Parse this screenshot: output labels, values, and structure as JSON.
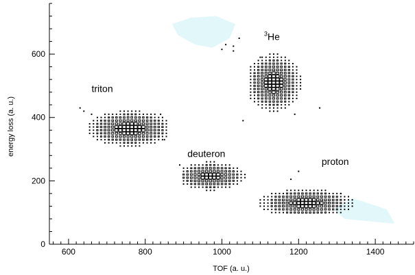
{
  "chart_data": {
    "type": "heatmap",
    "xlabel": "TOF (a. u.)",
    "ylabel": "energy loss (a. u.)",
    "xlim": [
      550,
      1500
    ],
    "ylim": [
      0,
      760
    ],
    "x_ticks": [
      600,
      800,
      1000,
      1200,
      1400
    ],
    "y_ticks": [
      0,
      200,
      400,
      600
    ],
    "annotations": [
      {
        "text": "triton",
        "x": 660,
        "y": 480
      },
      {
        "text": "deuteron",
        "x": 910,
        "y": 275
      },
      {
        "text": "proton",
        "x": 1260,
        "y": 250
      },
      {
        "text": "He",
        "superscript": "3",
        "x": 1110,
        "y": 645
      }
    ],
    "highlight_regions": [
      {
        "name": "upper-blob",
        "points": [
          [
            1020,
            650
          ],
          [
            1035,
            695
          ],
          [
            985,
            720
          ],
          [
            920,
            715
          ],
          [
            870,
            695
          ],
          [
            885,
            660
          ],
          [
            930,
            630
          ],
          [
            975,
            620
          ]
        ]
      },
      {
        "name": "lower-blob",
        "points": [
          [
            1450,
            65
          ],
          [
            1430,
            110
          ],
          [
            1380,
            130
          ],
          [
            1340,
            145
          ],
          [
            1290,
            110
          ],
          [
            1320,
            80
          ],
          [
            1390,
            72
          ]
        ]
      }
    ],
    "clusters": [
      {
        "name": "triton",
        "x_center": 760,
        "y_center": 365,
        "x_sigma": 55,
        "y_sigma": 28,
        "x_range": [
          625,
          855
        ],
        "y_range": [
          300,
          440
        ],
        "peak": 4
      },
      {
        "name": "deuteron",
        "x_center": 970,
        "y_center": 215,
        "x_sigma": 45,
        "y_sigma": 22,
        "x_range": [
          900,
          1060
        ],
        "y_range": [
          150,
          260
        ],
        "peak": 5
      },
      {
        "name": "proton",
        "x_center": 1220,
        "y_center": 130,
        "x_sigma": 60,
        "y_sigma": 22,
        "x_range": [
          1080,
          1340
        ],
        "y_range": [
          100,
          210
        ],
        "peak": 9
      },
      {
        "name": "helium-3",
        "x_center": 1135,
        "y_center": 510,
        "x_sigma": 35,
        "y_sigma": 45,
        "x_range": [
          1075,
          1205
        ],
        "y_range": [
          420,
          600
        ],
        "peak": 4
      }
    ],
    "scatter_cells": [
      [
        1000,
        615
      ],
      [
        1010,
        630
      ],
      [
        1030,
        625
      ],
      [
        1030,
        610
      ],
      [
        1045,
        650
      ],
      [
        1055,
        390
      ],
      [
        1255,
        430
      ],
      [
        1190,
        410
      ],
      [
        1200,
        230
      ],
      [
        1180,
        205
      ],
      [
        630,
        430
      ],
      [
        640,
        420
      ],
      [
        660,
        410
      ],
      [
        840,
        410
      ],
      [
        850,
        330
      ],
      [
        890,
        250
      ],
      [
        1100,
        590
      ],
      [
        1310,
        160
      ],
      [
        1320,
        140
      ]
    ]
  }
}
